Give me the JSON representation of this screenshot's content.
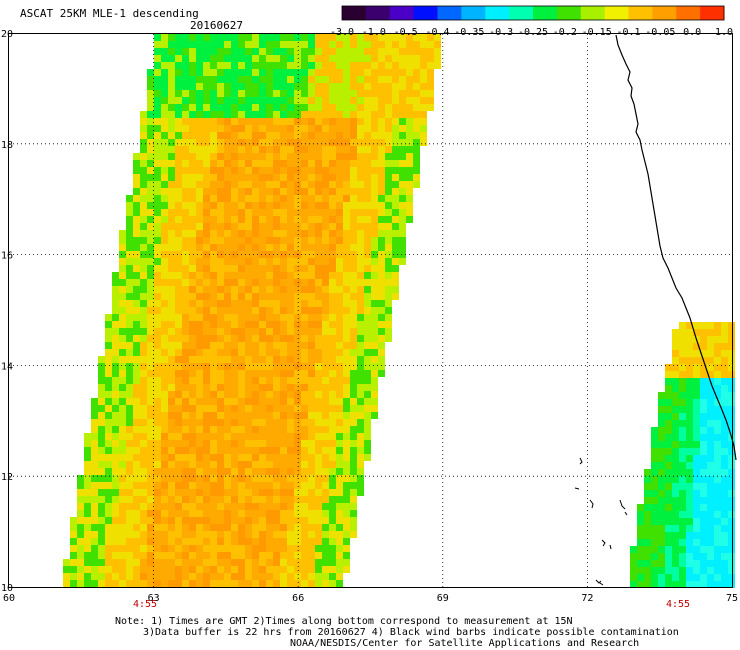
{
  "header": {
    "title": "ASCAT 25KM MLE-1 descending",
    "date": "20160627"
  },
  "colorbar": {
    "ticks": [
      "-3.0",
      "-1.0",
      "-0.5",
      "-0.4",
      "-0.35",
      "-0.3",
      "-0.25",
      "-0.2",
      "-0.15",
      "-0.1",
      "-0.05",
      "0.0",
      "1.0"
    ],
    "colors": [
      "#2a0030",
      "#3b006e",
      "#4b00c8",
      "#0010ff",
      "#0068ff",
      "#00b4ff",
      "#00f0ff",
      "#00ffb0",
      "#00f040",
      "#40e000",
      "#a8f000",
      "#f0f000",
      "#ffc000",
      "#ffa000",
      "#ff7000",
      "#ff3000"
    ]
  },
  "axes": {
    "x_ticks": [
      "60",
      "63",
      "66",
      "69",
      "72",
      "75"
    ],
    "y_ticks": [
      "20",
      "18",
      "16",
      "14",
      "12",
      "10"
    ],
    "time_labels": [
      "4:55",
      "4:55"
    ]
  },
  "notes": {
    "line1": "Note: 1) Times are GMT 2)Times along bottom correspond to measurement at 15N",
    "line2": "3)Data buffer is 22 hrs from 20160627 4) Black wind barbs indicate possible contamination",
    "line3": "NOAA/NESDIS/Center for Satellite Applications and Research"
  },
  "map_colors": {
    "orange_dark": "#ff9a00",
    "orange": "#ffaa00",
    "amber": "#ffc000",
    "yellow": "#f0e000",
    "yellow_green": "#b8f000",
    "green": "#40e000",
    "bright_green": "#00f040",
    "aqua_green": "#00ffa0",
    "cyan": "#00f0ff",
    "light_cyan": "#20ffe8"
  }
}
